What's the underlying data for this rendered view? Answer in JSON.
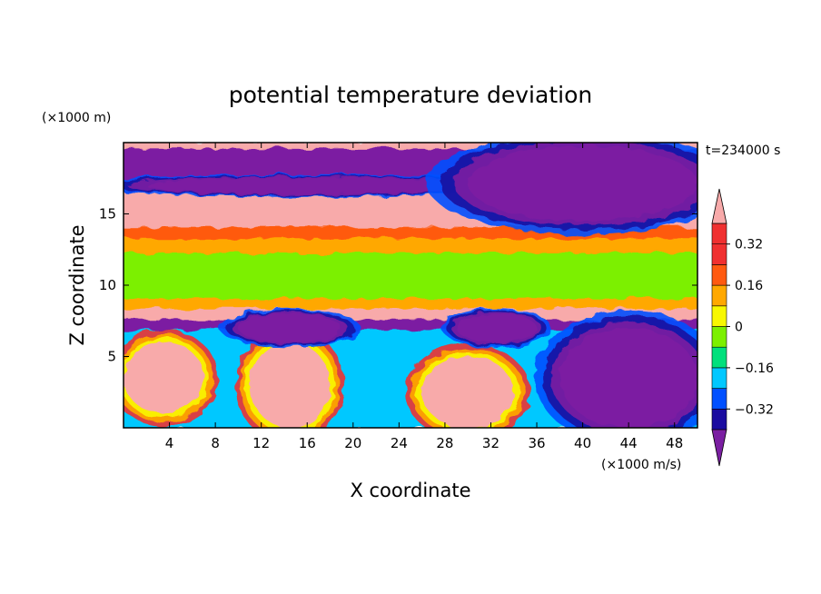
{
  "chart_data": {
    "type": "heatmap",
    "title": "potential temperature deviation",
    "xlabel": "X coordinate",
    "ylabel": "Z coordinate",
    "x_unit": "(×1000 m/s)",
    "y_unit": "(×1000 m)",
    "time_label": "t=234000 s",
    "xlim": [
      0,
      50
    ],
    "ylim": [
      0,
      20
    ],
    "x_ticks": [
      4,
      8,
      12,
      16,
      20,
      24,
      28,
      32,
      36,
      40,
      44,
      48
    ],
    "y_ticks": [
      5,
      10,
      15
    ],
    "colorbar": {
      "levels": [
        -0.4,
        -0.32,
        -0.24,
        -0.16,
        -0.08,
        0,
        0.08,
        0.16,
        0.24,
        0.32,
        0.4
      ],
      "labels": [
        "0.32",
        "0.16",
        "0",
        "−0.16",
        "−0.32"
      ],
      "label_values": [
        0.32,
        0.16,
        0,
        -0.16,
        -0.32
      ],
      "colors": [
        "#7b1fa2",
        "#1a0ca0",
        "#0050ff",
        "#00c8ff",
        "#00e07c",
        "#7cf000",
        "#f8f800",
        "#ffa800",
        "#ff5a10",
        "#f03030",
        "#f8aaaa"
      ],
      "extend": "both"
    },
    "layers": [
      {
        "z_range": [
          19.5,
          20
        ],
        "value": 0.45
      },
      {
        "z_range": [
          16.5,
          19.5
        ],
        "value": -0.45
      },
      {
        "z_range": [
          15.2,
          16.5
        ],
        "value": 0.42
      },
      {
        "z_range": [
          14.0,
          15.2
        ],
        "value": 0.45
      },
      {
        "z_range": [
          13.2,
          14.0
        ],
        "value": 0.3
      },
      {
        "z_range": [
          12.2,
          13.2
        ],
        "value": 0.17
      },
      {
        "z_range": [
          11.5,
          12.2
        ],
        "value": 0.03
      },
      {
        "z_range": [
          9.0,
          11.5
        ],
        "value": 0.07
      },
      {
        "z_range": [
          8.3,
          9.0
        ],
        "value": 0.2
      },
      {
        "z_range": [
          7.5,
          8.3
        ],
        "value": 0.45
      },
      {
        "z_range": [
          6.8,
          7.5
        ],
        "value": -0.45
      },
      {
        "z_range": [
          0,
          6.8
        ],
        "value": -0.1
      }
    ],
    "features": [
      {
        "name": "upper-cold-blob",
        "x": [
          2,
          30
        ],
        "z": [
          16.4,
          17.6
        ],
        "value": -0.45
      },
      {
        "name": "upper-cold-right",
        "x": [
          30,
          50
        ],
        "z": [
          14.5,
          19.8
        ],
        "value": -0.45
      },
      {
        "name": "lower-warm-plume-1",
        "x": [
          11,
          18
        ],
        "z": [
          0,
          6
        ],
        "value": 0.45
      },
      {
        "name": "lower-warm-plume-2",
        "x": [
          26,
          34
        ],
        "z": [
          0,
          5
        ],
        "value": 0.45
      },
      {
        "name": "lower-warm-left",
        "x": [
          0,
          7
        ],
        "z": [
          1,
          6
        ],
        "value": 0.45
      },
      {
        "name": "cold-dome-1",
        "x": [
          10,
          19
        ],
        "z": [
          6,
          8
        ],
        "value": -0.45
      },
      {
        "name": "cold-dome-2",
        "x": [
          29,
          36
        ],
        "z": [
          6,
          8
        ],
        "value": -0.45
      },
      {
        "name": "lower-cold-right",
        "x": [
          38,
          50
        ],
        "z": [
          0,
          7
        ],
        "value": -0.45
      }
    ]
  }
}
